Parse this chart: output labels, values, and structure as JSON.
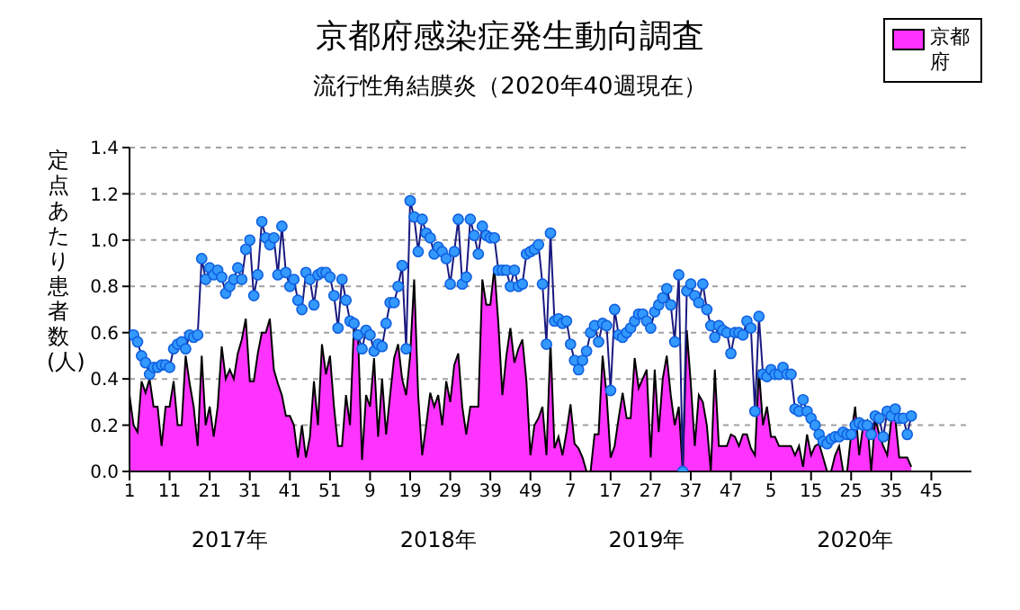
{
  "chart_data": {
    "type": "area",
    "title": "京都府感染症発生動向調査",
    "subtitle": "流行性角結膜炎（2020年40週現在）",
    "ylabel": "定点あたり患者数(人)",
    "annotations": [
      "2017年",
      "2018年",
      "2019年",
      "2020年"
    ],
    "categories": [
      "1",
      null,
      null,
      null,
      null,
      null,
      null,
      null,
      null,
      null,
      "11",
      null,
      null,
      null,
      null,
      null,
      null,
      null,
      null,
      null,
      "21",
      null,
      null,
      null,
      null,
      null,
      null,
      null,
      null,
      null,
      "31",
      null,
      null,
      null,
      null,
      null,
      null,
      null,
      null,
      null,
      "41",
      null,
      null,
      null,
      null,
      null,
      null,
      null,
      null,
      null,
      "51",
      null,
      null,
      null,
      null,
      null,
      null,
      null,
      null,
      null,
      "9",
      null,
      null,
      null,
      null,
      null,
      null,
      null,
      null,
      null,
      "19",
      null,
      null,
      null,
      null,
      null,
      null,
      null,
      null,
      null,
      "29",
      null,
      null,
      null,
      null,
      null,
      null,
      null,
      null,
      null,
      "39",
      null,
      null,
      null,
      null,
      null,
      null,
      null,
      null,
      null,
      "49",
      null,
      null,
      null,
      null,
      null,
      null,
      null,
      null,
      null,
      "7",
      null,
      null,
      null,
      null,
      null,
      null,
      null,
      null,
      null,
      "17",
      null,
      null,
      null,
      null,
      null,
      null,
      null,
      null,
      null,
      "27",
      null,
      null,
      null,
      null,
      null,
      null,
      null,
      null,
      null,
      "37",
      null,
      null,
      null,
      null,
      null,
      null,
      null,
      null,
      null,
      "47",
      null,
      null,
      null,
      null,
      null,
      null,
      null,
      null,
      null,
      "5",
      null,
      null,
      null,
      null,
      null,
      null,
      null,
      null,
      null,
      "15",
      null,
      null,
      null,
      null,
      null,
      null,
      null,
      null,
      null,
      "25",
      null,
      null,
      null,
      null,
      null,
      null,
      null,
      null,
      null,
      "35",
      null,
      null,
      null,
      null,
      null,
      null,
      null,
      null,
      null,
      "45",
      null,
      null,
      null,
      null,
      null,
      null,
      null,
      null,
      null,
      null
    ],
    "ylim": [
      0,
      1.4
    ],
    "yticks": [
      {
        "value": 0,
        "label": "0.0"
      },
      {
        "value": 0.2,
        "label": "0.2"
      },
      {
        "value": 0.4,
        "label": "0.4"
      },
      {
        "value": 0.6,
        "label": "0.6"
      },
      {
        "value": 0.8,
        "label": "0.8"
      },
      {
        "value": 1,
        "label": "1.0"
      },
      {
        "value": 1.2,
        "label": "1.2"
      },
      {
        "value": 1.4,
        "label": "1.4"
      }
    ],
    "grid": "y",
    "legend": "top right",
    "series": [
      {
        "name": "京都府",
        "color": "#ff33ff",
        "values": [
          0.33,
          0.2,
          0.17,
          0.39,
          0.34,
          0.4,
          0.28,
          0.28,
          0.11,
          0.28,
          0.28,
          0.39,
          0.2,
          0.2,
          0.5,
          0.38,
          0.28,
          0.11,
          0.5,
          0.2,
          0.28,
          0.15,
          0.28,
          0.54,
          0.4,
          0.44,
          0.4,
          0.51,
          0.57,
          0.66,
          0.39,
          0.39,
          0.51,
          0.6,
          0.6,
          0.66,
          0.44,
          0.38,
          0.33,
          0.24,
          0.24,
          0.2,
          0.06,
          0.2,
          0.06,
          0.15,
          0.39,
          0.2,
          0.55,
          0.42,
          0.5,
          0.28,
          0.11,
          0.11,
          0.33,
          0.2,
          0.64,
          0.59,
          0.05,
          0.33,
          0.28,
          0.49,
          0.15,
          0.4,
          0.16,
          0.33,
          0.49,
          0.55,
          0.4,
          0.33,
          0.5,
          0.83,
          0.33,
          0.07,
          0.2,
          0.34,
          0.28,
          0.33,
          0.2,
          0.39,
          0.3,
          0.46,
          0.51,
          0.28,
          0.16,
          0.28,
          0.28,
          0.28,
          0.83,
          0.72,
          0.72,
          0.88,
          0.64,
          0.33,
          0.5,
          0.62,
          0.47,
          0.53,
          0.57,
          0.39,
          0.07,
          0.2,
          0.23,
          0.28,
          0.07,
          0.56,
          0.1,
          0.15,
          0.07,
          0.17,
          0.29,
          0.12,
          0.1,
          0.06,
          0,
          0,
          0.16,
          0.16,
          0.5,
          0.33,
          0.06,
          0.11,
          0.23,
          0.34,
          0.23,
          0.23,
          0.49,
          0.36,
          0.4,
          0.44,
          0.06,
          0.44,
          0.17,
          0.4,
          0.5,
          0.33,
          0.2,
          0.28,
          0,
          0.61,
          0.38,
          0.11,
          0.33,
          0.3,
          0.2,
          0,
          0.44,
          0.11,
          0.11,
          0.11,
          0.16,
          0.15,
          0.11,
          0.16,
          0.16,
          0.1,
          0.07,
          0.44,
          0.2,
          0.28,
          0.15,
          0.15,
          0.11,
          0.11,
          0.11,
          0.11,
          0.07,
          0.11,
          0.02,
          0.16,
          0.07,
          0.11,
          0.12,
          0.06,
          0,
          0,
          0.07,
          0.11,
          0,
          0,
          0.16,
          0.28,
          0.07,
          0.2,
          0.22,
          0,
          0.23,
          0.16,
          0.11,
          0.07,
          0.22,
          0.23,
          0.06,
          0.06,
          0.06,
          0.02,
          null,
          null,
          null,
          null,
          null,
          null,
          null,
          null,
          null,
          null,
          null,
          null,
          null,
          null,
          null
        ]
      },
      {
        "type": "line",
        "color": "#3399ff",
        "marker": "circle",
        "values": [
          0.59,
          0.59,
          0.56,
          0.5,
          0.47,
          0.42,
          0.45,
          0.45,
          0.46,
          0.46,
          0.45,
          0.53,
          0.55,
          0.56,
          0.53,
          0.59,
          0.58,
          0.59,
          0.92,
          0.83,
          0.88,
          0.85,
          0.87,
          0.84,
          0.77,
          0.8,
          0.83,
          0.88,
          0.83,
          0.96,
          1.0,
          0.76,
          0.85,
          1.08,
          1.01,
          0.98,
          1.01,
          0.85,
          1.06,
          0.86,
          0.8,
          0.83,
          0.74,
          0.7,
          0.86,
          0.83,
          0.72,
          0.85,
          0.86,
          0.86,
          0.84,
          0.76,
          0.62,
          0.83,
          0.74,
          0.65,
          0.64,
          0.59,
          0.53,
          0.61,
          0.59,
          0.52,
          0.55,
          0.54,
          0.64,
          0.73,
          0.73,
          0.8,
          0.89,
          0.53,
          1.17,
          1.1,
          0.95,
          1.09,
          1.03,
          1.01,
          0.94,
          0.97,
          0.95,
          0.92,
          0.81,
          0.95,
          1.09,
          0.81,
          0.84,
          1.09,
          1.02,
          0.94,
          1.06,
          1.02,
          1.01,
          1.01,
          0.87,
          0.87,
          0.87,
          0.8,
          0.87,
          0.8,
          0.81,
          0.94,
          0.95,
          0.96,
          0.98,
          0.81,
          0.55,
          1.03,
          0.65,
          0.66,
          0.64,
          0.65,
          0.55,
          0.48,
          0.44,
          0.48,
          0.52,
          0.6,
          0.63,
          0.56,
          0.64,
          0.63,
          0.35,
          0.7,
          0.59,
          0.58,
          0.6,
          0.62,
          0.65,
          0.68,
          0.68,
          0.65,
          0.62,
          0.69,
          0.72,
          0.75,
          0.79,
          0.72,
          0.56,
          0.85,
          0,
          0.78,
          0.81,
          0.76,
          0.73,
          0.81,
          0.7,
          0.63,
          0.58,
          0.63,
          0.61,
          0.6,
          0.51,
          0.6,
          0.6,
          0.59,
          0.65,
          0.62,
          0.26,
          0.67,
          0.42,
          0.41,
          0.44,
          0.42,
          0.42,
          0.45,
          0.42,
          0.42,
          0.27,
          0.26,
          0.31,
          0.26,
          0.23,
          0.2,
          0.16,
          0.13,
          0.12,
          0.14,
          0.15,
          0.15,
          0.17,
          0.16,
          0.16,
          0.2,
          0.21,
          0.2,
          0.2,
          0.16,
          0.24,
          0.23,
          0.15,
          0.26,
          0.24,
          0.27,
          0.23,
          0.23,
          0.16,
          0.24,
          null,
          null,
          null,
          null,
          null,
          null,
          null,
          null,
          null,
          null,
          null,
          null,
          null,
          null,
          null
        ]
      }
    ]
  }
}
